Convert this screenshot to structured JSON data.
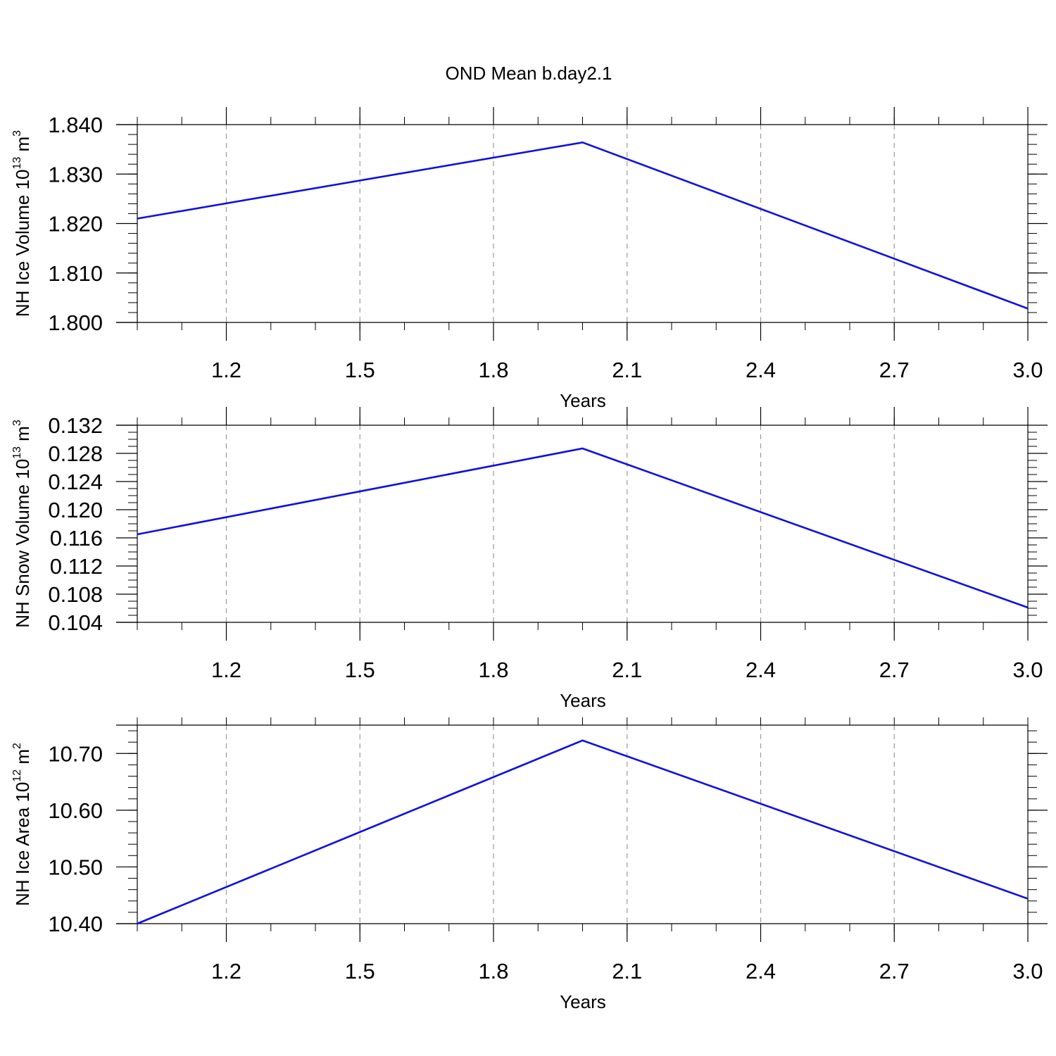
{
  "figure": {
    "title": "OND Mean b.day2.1"
  },
  "chart_data": [
    {
      "type": "line",
      "xlabel": "Years",
      "ylabel": {
        "main": "NH Ice Volume 10",
        "exp": "13",
        "unit": " m",
        "unit_exp": "3"
      },
      "x": [
        1.0,
        2.0,
        3.0
      ],
      "series": [
        {
          "values": [
            1.821,
            1.8364,
            1.8028
          ]
        }
      ],
      "xlim": [
        1.0,
        3.0
      ],
      "ylim": [
        1.8,
        1.84
      ],
      "xticks": [
        1.2,
        1.5,
        1.8,
        2.1,
        2.4,
        2.7,
        3.0
      ],
      "xtick_labels": [
        "1.2",
        "1.5",
        "1.8",
        "2.1",
        "2.4",
        "2.7",
        "3.0"
      ],
      "yticks": [
        1.8,
        1.81,
        1.82,
        1.83,
        1.84
      ],
      "ytick_labels": [
        "1.800",
        "1.810",
        "1.820",
        "1.830",
        "1.840"
      ],
      "x_minor_step": 0.1,
      "y_minor_step": 0.002,
      "grid": "vertical dashed",
      "line_color": "#1010e0"
    },
    {
      "type": "line",
      "xlabel": "Years",
      "ylabel": {
        "main": "NH Snow Volume 10",
        "exp": "13",
        "unit": " m",
        "unit_exp": "3"
      },
      "x": [
        1.0,
        2.0,
        3.0
      ],
      "series": [
        {
          "values": [
            0.1165,
            0.1287,
            0.1061
          ]
        }
      ],
      "xlim": [
        1.0,
        3.0
      ],
      "ylim": [
        0.104,
        0.132
      ],
      "xticks": [
        1.2,
        1.5,
        1.8,
        2.1,
        2.4,
        2.7,
        3.0
      ],
      "xtick_labels": [
        "1.2",
        "1.5",
        "1.8",
        "2.1",
        "2.4",
        "2.7",
        "3.0"
      ],
      "yticks": [
        0.104,
        0.108,
        0.112,
        0.116,
        0.12,
        0.124,
        0.128,
        0.132
      ],
      "ytick_labels": [
        "0.104",
        "0.108",
        "0.112",
        "0.116",
        "0.120",
        "0.124",
        "0.128",
        "0.132"
      ],
      "x_minor_step": 0.1,
      "y_minor_step": 0.001,
      "grid": "vertical dashed",
      "line_color": "#1010e0"
    },
    {
      "type": "line",
      "xlabel": "Years",
      "ylabel": {
        "main": "NH Ice Area 10",
        "exp": "12",
        "unit": " m",
        "unit_exp": "2"
      },
      "x": [
        1.0,
        2.0,
        3.0
      ],
      "series": [
        {
          "values": [
            10.4,
            10.723,
            10.444
          ]
        }
      ],
      "xlim": [
        1.0,
        3.0
      ],
      "ylim": [
        10.4,
        10.75
      ],
      "xticks": [
        1.2,
        1.5,
        1.8,
        2.1,
        2.4,
        2.7,
        3.0
      ],
      "xtick_labels": [
        "1.2",
        "1.5",
        "1.8",
        "2.1",
        "2.4",
        "2.7",
        "3.0"
      ],
      "yticks": [
        10.4,
        10.5,
        10.6,
        10.7
      ],
      "ytick_labels": [
        "10.40",
        "10.50",
        "10.60",
        "10.70"
      ],
      "x_minor_step": 0.1,
      "y_minor_step": 0.02,
      "grid": "vertical dashed",
      "line_color": "#1010e0"
    }
  ]
}
